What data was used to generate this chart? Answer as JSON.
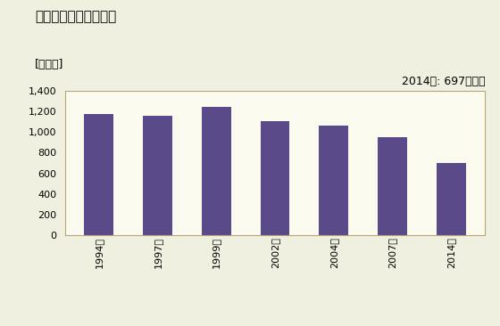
{
  "title": "商業の事業所数の推移",
  "ylabel": "[事業所]",
  "annotation": "2014年: 697事業所",
  "categories": [
    "1994年",
    "1997年",
    "1999年",
    "2002年",
    "2004年",
    "2007年",
    "2014年"
  ],
  "values": [
    1180,
    1163,
    1247,
    1112,
    1063,
    955,
    697
  ],
  "bar_color": "#5B4A8A",
  "ylim": [
    0,
    1400
  ],
  "yticks": [
    0,
    200,
    400,
    600,
    800,
    1000,
    1200,
    1400
  ],
  "background_color": "#F0F0E0",
  "plot_bg_color": "#FAFAEE",
  "title_fontsize": 11,
  "ylabel_fontsize": 9,
  "tick_fontsize": 8,
  "annotation_fontsize": 9
}
